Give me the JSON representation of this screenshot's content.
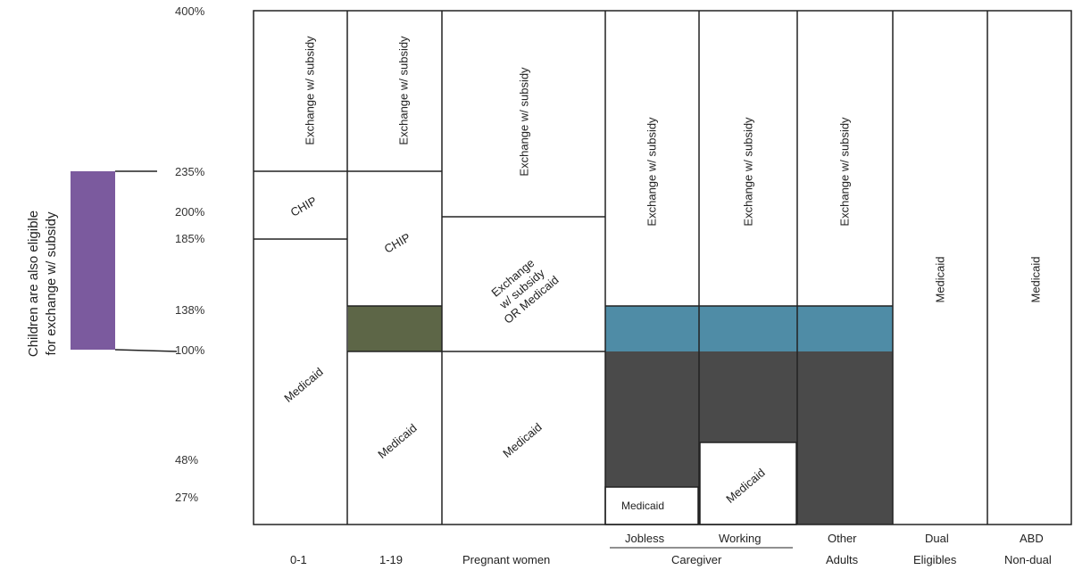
{
  "side_note": {
    "line1": "Children are also eligible",
    "line2": "for exchange w/ subsidy",
    "bar_color": "#7b5a9e"
  },
  "y_ticks": [
    "400%",
    "235%",
    "200%",
    "185%",
    "138%",
    "100%",
    "48%",
    "27%"
  ],
  "columns": {
    "c01": "0-1",
    "c119": "1-19",
    "preg": "Pregnant women",
    "jobless": "Jobless",
    "working": "Working",
    "caregiver": "Caregiver",
    "other1": "Other",
    "other2": "Adults",
    "dual1": "Dual",
    "dual2": "Eligibles",
    "abd1": "ABD",
    "abd2": "Non-dual"
  },
  "cells": {
    "exchange": "Exchange w/ subsidy",
    "chip": "CHIP",
    "medicaid": "Medicaid",
    "preg_mid_1": "Exchange",
    "preg_mid_2": "w/ subsidy",
    "preg_mid_3": "OR Medicaid"
  },
  "colors": {
    "dark_fill": "#4a4a4a",
    "blue_fill": "#4f8ca6",
    "green_fill": "#5d6647"
  }
}
